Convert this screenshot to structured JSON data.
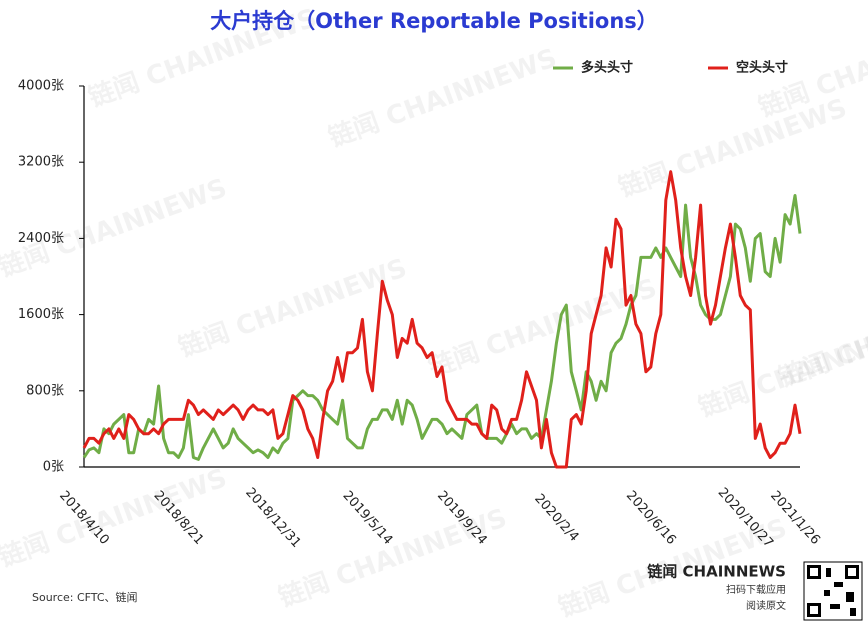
{
  "chart_data": {
    "type": "line",
    "title": "大户持仓（Other Reportable Positions）",
    "categories": [
      "2018/4/10",
      null,
      null,
      null,
      null,
      null,
      null,
      null,
      null,
      null,
      null,
      null,
      null,
      null,
      null,
      null,
      null,
      null,
      null,
      "2018/8/21",
      null,
      null,
      null,
      null,
      null,
      null,
      null,
      null,
      null,
      null,
      null,
      null,
      null,
      null,
      null,
      null,
      null,
      null,
      "2018/12/31",
      null,
      null,
      null,
      null,
      null,
      null,
      null,
      null,
      null,
      null,
      null,
      null,
      null,
      null,
      null,
      null,
      null,
      null,
      "2019/5/14",
      null,
      null,
      null,
      null,
      null,
      null,
      null,
      null,
      null,
      null,
      null,
      null,
      null,
      null,
      null,
      null,
      null,
      null,
      "2019/9/24",
      null,
      null,
      null,
      null,
      null,
      null,
      null,
      null,
      null,
      null,
      null,
      null,
      null,
      null,
      null,
      null,
      null,
      null,
      "2020/2/4",
      null,
      null,
      null,
      null,
      null,
      null,
      null,
      null,
      null,
      null,
      null,
      null,
      null,
      null,
      null,
      null,
      null,
      null,
      "2020/6/16",
      null,
      null,
      null,
      null,
      null,
      null,
      null,
      null,
      null,
      null,
      null,
      null,
      null,
      null,
      null,
      null,
      null,
      null,
      "2020/10/27",
      null,
      null,
      null,
      null,
      null,
      null,
      null,
      null,
      null,
      "2021/1/26",
      null
    ],
    "series": [
      {
        "name": "多头头寸",
        "color": "#70ad47",
        "values": [
          100,
          180,
          200,
          150,
          400,
          350,
          450,
          500,
          550,
          150,
          150,
          400,
          350,
          500,
          450,
          850,
          300,
          150,
          150,
          100,
          200,
          550,
          100,
          80,
          200,
          300,
          400,
          300,
          200,
          250,
          400,
          300,
          250,
          200,
          150,
          180,
          150,
          100,
          200,
          150,
          250,
          300,
          700,
          750,
          800,
          750,
          750,
          700,
          600,
          550,
          500,
          450,
          700,
          300,
          250,
          200,
          200,
          400,
          500,
          500,
          600,
          600,
          500,
          700,
          450,
          700,
          650,
          500,
          300,
          400,
          500,
          500,
          450,
          350,
          400,
          350,
          300,
          550,
          600,
          650,
          350,
          300,
          300,
          300,
          250,
          350,
          450,
          350,
          400,
          400,
          300,
          350,
          300,
          600,
          900,
          1300,
          1600,
          1700,
          1000,
          800,
          600,
          1000,
          900,
          700,
          900,
          800,
          1200,
          1300,
          1350,
          1500,
          1700,
          1800,
          2200,
          2200,
          2200,
          2300,
          2200,
          2300,
          2200,
          2100,
          2000,
          2750,
          2200,
          2000,
          1700,
          1600,
          1550,
          1550,
          1600,
          1800,
          2000,
          2550,
          2500,
          2300,
          1950,
          2400,
          2450,
          2050,
          2000,
          2400,
          2150,
          2650,
          2550,
          2850,
          2450
        ]
      },
      {
        "name": "空头头寸",
        "color": "#e0201b",
        "values": [
          200,
          300,
          300,
          250,
          350,
          400,
          300,
          400,
          300,
          550,
          500,
          400,
          350,
          350,
          400,
          350,
          450,
          500,
          500,
          500,
          500,
          700,
          650,
          550,
          600,
          550,
          500,
          600,
          550,
          600,
          650,
          600,
          500,
          600,
          650,
          600,
          600,
          550,
          600,
          300,
          350,
          550,
          750,
          700,
          600,
          400,
          300,
          100,
          500,
          800,
          900,
          1150,
          900,
          1200,
          1200,
          1250,
          1550,
          1000,
          800,
          1400,
          1950,
          1750,
          1600,
          1150,
          1350,
          1300,
          1550,
          1300,
          1250,
          1150,
          1200,
          950,
          1050,
          700,
          600,
          500,
          500,
          500,
          450,
          450,
          350,
          300,
          650,
          600,
          400,
          350,
          500,
          500,
          700,
          1000,
          850,
          700,
          200,
          500,
          150,
          0,
          0,
          0,
          500,
          550,
          450,
          800,
          1400,
          1600,
          1800,
          2300,
          2100,
          2600,
          2500,
          1700,
          1800,
          1500,
          1400,
          1000,
          1050,
          1400,
          1600,
          2800,
          3100,
          2800,
          2300,
          2000,
          1800,
          2200,
          2750,
          1800,
          1500,
          1700,
          2000,
          2300,
          2550,
          2200,
          1800,
          1700,
          1650,
          300,
          450,
          200,
          100,
          150,
          250,
          250,
          350,
          650,
          350
        ]
      }
    ],
    "ylim": [
      0,
      4000
    ],
    "yticks": [
      {
        "value": 0,
        "label": "0张"
      },
      {
        "value": 800,
        "label": "800张"
      },
      {
        "value": 1600,
        "label": "1600张"
      },
      {
        "value": 2400,
        "label": "2400张"
      },
      {
        "value": 3200,
        "label": "3200张"
      },
      {
        "value": 4000,
        "label": "4000张"
      }
    ],
    "grid": false,
    "legend": "top",
    "watermark": "链闻 CHAINNEWS",
    "source": "Source: CFTC、链闻"
  },
  "footer": {
    "brand": "链闻 CHAINNEWS",
    "line1": "扫码下载应用",
    "line2": "阅读原文"
  }
}
